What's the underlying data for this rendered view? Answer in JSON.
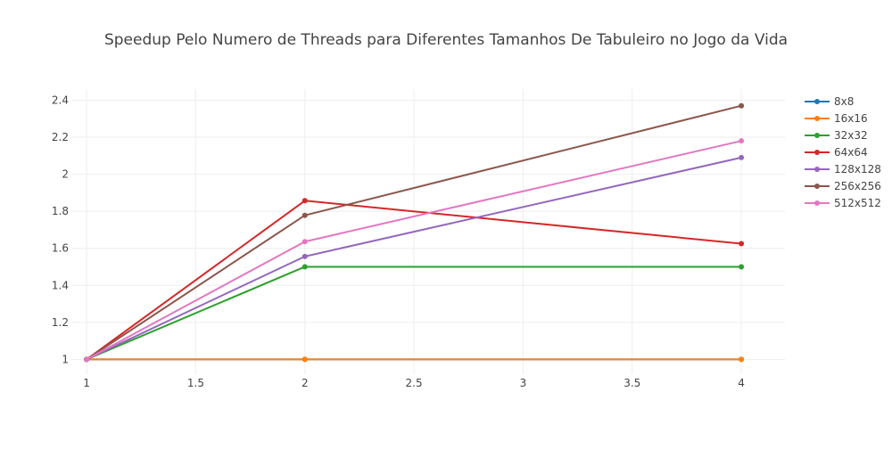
{
  "chart_data": {
    "type": "line",
    "title": "Speedup Pelo Numero de Threads para Diferentes Tamanhos De Tabuleiro no Jogo da Vida",
    "xlabel": "",
    "ylabel": "",
    "xlim": [
      0.93,
      4.2
    ],
    "ylim": [
      0.92,
      2.46
    ],
    "x_ticks": [
      1,
      1.5,
      2,
      2.5,
      3,
      3.5,
      4
    ],
    "x_tick_labels": [
      "1",
      "1.5",
      "2",
      "2.5",
      "3",
      "3.5",
      "4"
    ],
    "y_ticks": [
      1,
      1.2,
      1.4,
      1.6,
      1.8,
      2,
      2.2,
      2.4
    ],
    "y_tick_labels": [
      "1",
      "1.2",
      "1.4",
      "1.6",
      "1.8",
      "2",
      "2.2",
      "2.4"
    ],
    "grid": true,
    "legend_position": "top-right",
    "x": [
      1,
      2,
      4
    ],
    "series": [
      {
        "name": "8x8",
        "color": "#1f77b4",
        "values": [
          1,
          1,
          1
        ]
      },
      {
        "name": "16x16",
        "color": "#ff7f0e",
        "values": [
          1,
          1,
          1
        ]
      },
      {
        "name": "32x32",
        "color": "#2ca02c",
        "values": [
          1,
          1.5,
          1.5
        ]
      },
      {
        "name": "64x64",
        "color": "#d62728",
        "values": [
          1,
          1.857,
          1.625
        ]
      },
      {
        "name": "128x128",
        "color": "#9467bd",
        "values": [
          1,
          1.556,
          2.09
        ]
      },
      {
        "name": "256x256",
        "color": "#8c564b",
        "values": [
          1,
          1.778,
          2.37
        ]
      },
      {
        "name": "512x512",
        "color": "#e377c2",
        "values": [
          1,
          1.636,
          2.18
        ]
      }
    ]
  }
}
